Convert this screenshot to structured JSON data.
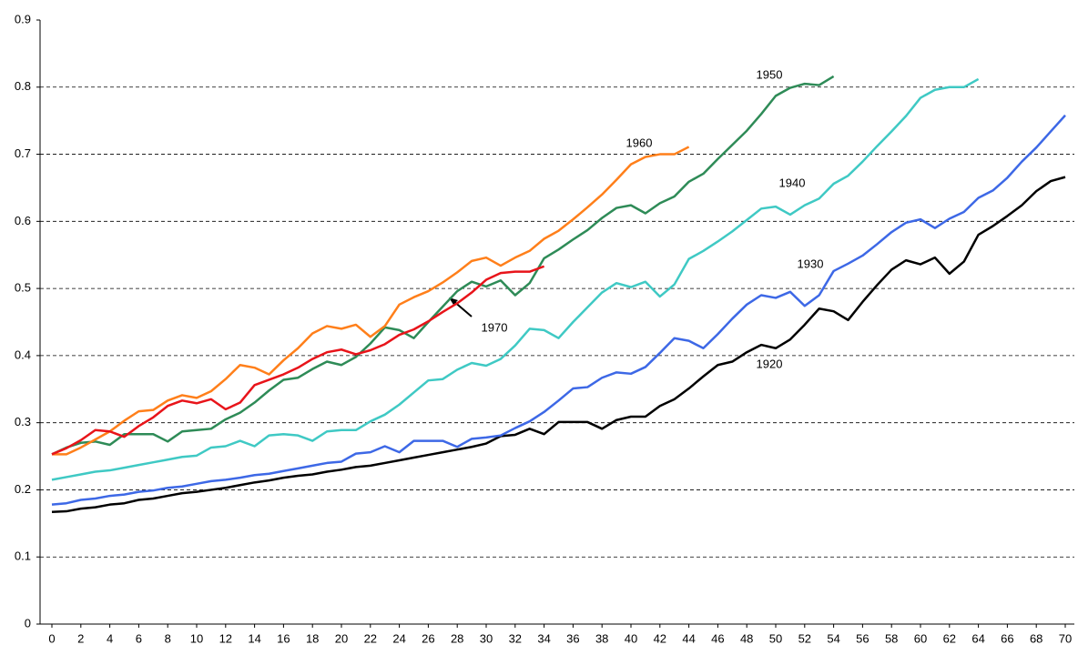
{
  "chart_data": {
    "type": "line",
    "x": [
      0,
      1,
      2,
      3,
      4,
      5,
      6,
      7,
      8,
      9,
      10,
      11,
      12,
      13,
      14,
      15,
      16,
      17,
      18,
      19,
      20,
      21,
      22,
      23,
      24,
      25,
      26,
      27,
      28,
      29,
      30,
      31,
      32,
      33,
      34,
      35,
      36,
      37,
      38,
      39,
      40,
      41,
      42,
      43,
      44,
      45,
      46,
      47,
      48,
      49,
      50,
      51,
      52,
      53,
      54,
      55,
      56,
      57,
      58,
      59,
      60,
      61,
      62,
      63,
      64,
      65,
      66,
      67,
      68,
      69,
      70
    ],
    "xlim": [
      0,
      70
    ],
    "xticks": [
      0,
      2,
      4,
      6,
      8,
      10,
      12,
      14,
      16,
      18,
      20,
      22,
      24,
      26,
      28,
      30,
      32,
      34,
      36,
      38,
      40,
      42,
      44,
      46,
      48,
      50,
      52,
      54,
      56,
      58,
      60,
      62,
      64,
      66,
      68,
      70
    ],
    "ylim": [
      0,
      0.9
    ],
    "yticks": [
      0,
      0.1,
      0.2,
      0.3,
      0.4,
      0.5,
      0.6,
      0.7,
      0.8,
      0.9
    ],
    "grid": true,
    "series": [
      {
        "name": "1920",
        "color": "#000000",
        "values": [
          0.167,
          0.168,
          0.172,
          0.174,
          0.178,
          0.18,
          0.185,
          0.187,
          0.191,
          0.195,
          0.197,
          0.2,
          0.203,
          0.207,
          0.211,
          0.214,
          0.218,
          0.221,
          0.223,
          0.227,
          0.23,
          0.234,
          0.236,
          0.24,
          0.244,
          0.248,
          0.252,
          0.256,
          0.26,
          0.264,
          0.269,
          0.28,
          0.282,
          0.291,
          0.283,
          0.301,
          0.301,
          0.301,
          0.291,
          0.304,
          0.309,
          0.309,
          0.325,
          0.335,
          0.351,
          0.369,
          0.386,
          0.391,
          0.405,
          0.416,
          0.411,
          0.424,
          0.446,
          0.47,
          0.466,
          0.453,
          0.48,
          0.505,
          0.528,
          0.542,
          0.536,
          0.546,
          0.522,
          0.54,
          0.58,
          0.593,
          0.608,
          0.624,
          0.645,
          0.66,
          0.666
        ]
      },
      {
        "name": "1930",
        "color": "#3d68e6",
        "values": [
          0.178,
          0.18,
          0.185,
          0.187,
          0.191,
          0.193,
          0.197,
          0.199,
          0.203,
          0.205,
          0.209,
          0.213,
          0.215,
          0.218,
          0.222,
          0.224,
          0.228,
          0.232,
          0.236,
          0.24,
          0.242,
          0.254,
          0.256,
          0.265,
          0.256,
          0.273,
          0.273,
          0.273,
          0.264,
          0.276,
          0.278,
          0.281,
          0.292,
          0.302,
          0.316,
          0.333,
          0.351,
          0.353,
          0.367,
          0.375,
          0.373,
          0.383,
          0.404,
          0.426,
          0.422,
          0.411,
          0.432,
          0.455,
          0.476,
          0.49,
          0.486,
          0.495,
          0.474,
          0.49,
          0.526,
          0.537,
          0.549,
          0.566,
          0.584,
          0.598,
          0.603,
          0.59,
          0.604,
          0.614,
          0.635,
          0.646,
          0.665,
          0.689,
          0.71,
          0.734,
          0.758
        ]
      },
      {
        "name": "1940",
        "color": "#3fc9c4",
        "values": [
          0.215,
          0.219,
          0.223,
          0.227,
          0.229,
          0.233,
          0.237,
          0.241,
          0.245,
          0.249,
          0.251,
          0.263,
          0.265,
          0.273,
          0.265,
          0.281,
          0.283,
          0.281,
          0.273,
          0.287,
          0.289,
          0.289,
          0.302,
          0.312,
          0.327,
          0.345,
          0.363,
          0.365,
          0.379,
          0.389,
          0.385,
          0.395,
          0.415,
          0.44,
          0.438,
          0.426,
          0.45,
          0.472,
          0.494,
          0.508,
          0.502,
          0.51,
          0.488,
          0.506,
          0.544,
          0.556,
          0.57,
          0.585,
          0.602,
          0.619,
          0.622,
          0.61,
          0.624,
          0.634,
          0.656,
          0.668,
          0.689,
          0.712,
          0.734,
          0.757,
          0.784,
          0.796,
          0.8,
          0.8,
          0.812,
          null,
          null,
          null,
          null,
          null,
          null
        ]
      },
      {
        "name": "1950",
        "color": "#2e8b57",
        "values": [
          0.253,
          0.263,
          0.27,
          0.272,
          0.267,
          0.283,
          0.283,
          0.283,
          0.272,
          0.287,
          0.289,
          0.291,
          0.305,
          0.315,
          0.33,
          0.348,
          0.364,
          0.367,
          0.38,
          0.391,
          0.386,
          0.398,
          0.418,
          0.442,
          0.438,
          0.426,
          0.45,
          0.473,
          0.496,
          0.51,
          0.503,
          0.512,
          0.49,
          0.508,
          0.545,
          0.558,
          0.573,
          0.587,
          0.605,
          0.62,
          0.624,
          0.612,
          0.627,
          0.637,
          0.659,
          0.671,
          0.693,
          0.714,
          0.735,
          0.76,
          0.787,
          0.799,
          0.805,
          0.803,
          0.816,
          null,
          null,
          null,
          null,
          null,
          null,
          null,
          null,
          null,
          null,
          null,
          null,
          null,
          null,
          null,
          null
        ]
      },
      {
        "name": "1960",
        "color": "#ff7f1a",
        "values": [
          0.253,
          0.253,
          0.263,
          0.275,
          0.287,
          0.303,
          0.317,
          0.319,
          0.333,
          0.341,
          0.337,
          0.347,
          0.365,
          0.386,
          0.382,
          0.372,
          0.393,
          0.411,
          0.433,
          0.444,
          0.44,
          0.446,
          0.428,
          0.444,
          0.476,
          0.487,
          0.496,
          0.509,
          0.524,
          0.541,
          0.546,
          0.534,
          0.546,
          0.556,
          0.574,
          0.586,
          0.603,
          0.621,
          0.64,
          0.662,
          0.685,
          0.696,
          0.7,
          0.7,
          0.711,
          null,
          null,
          null,
          null,
          null,
          null,
          null,
          null,
          null,
          null,
          null,
          null,
          null,
          null,
          null,
          null,
          null,
          null,
          null,
          null,
          null,
          null,
          null,
          null,
          null,
          null
        ]
      },
      {
        "name": "1970",
        "color": "#e8141a",
        "values": [
          0.253,
          0.262,
          0.274,
          0.289,
          0.287,
          0.279,
          0.295,
          0.308,
          0.325,
          0.333,
          0.329,
          0.335,
          0.32,
          0.33,
          0.356,
          0.364,
          0.372,
          0.382,
          0.395,
          0.405,
          0.409,
          0.402,
          0.408,
          0.417,
          0.431,
          0.439,
          0.451,
          0.465,
          0.478,
          0.494,
          0.513,
          0.523,
          0.525,
          0.525,
          0.533,
          null,
          null,
          null,
          null,
          null,
          null,
          null,
          null,
          null,
          null,
          null,
          null,
          null,
          null,
          null,
          null,
          null,
          null,
          null,
          null,
          null,
          null,
          null,
          null,
          null,
          null,
          null,
          null,
          null,
          null,
          null,
          null,
          null,
          null,
          null,
          null
        ]
      }
    ]
  }
}
